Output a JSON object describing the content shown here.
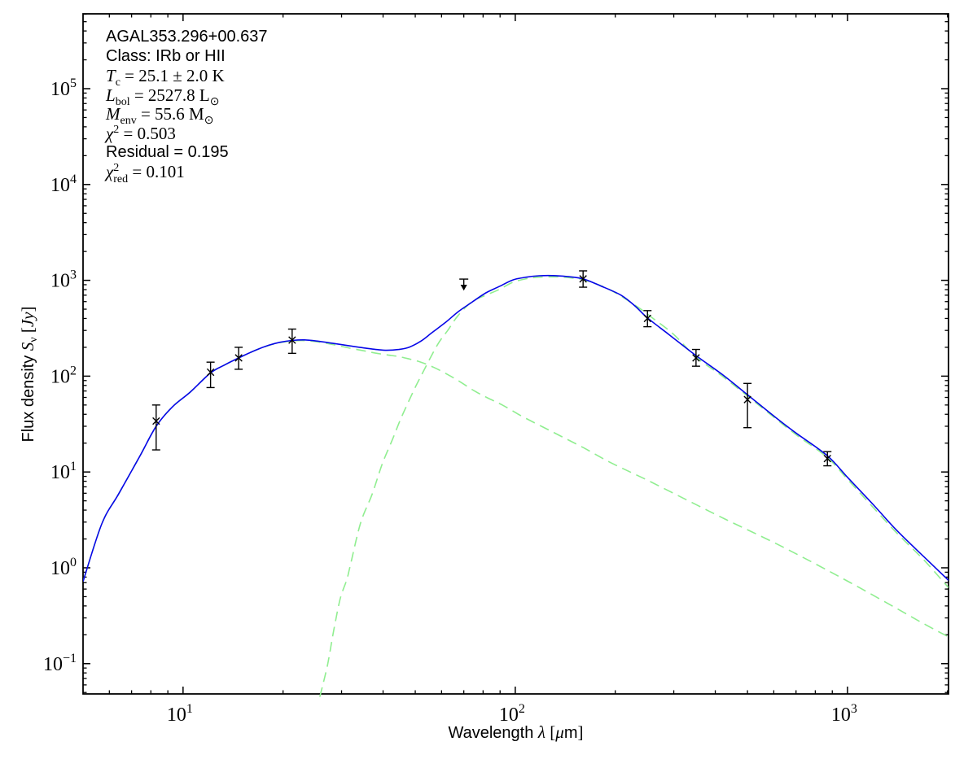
{
  "chart_data": {
    "type": "line",
    "xlabel": "Wavelength λ [μm]",
    "ylabel": "Flux density Sν [Jy]",
    "x_axis": {
      "scale": "log",
      "lim": [
        5,
        2014
      ],
      "major_tick_exponents": [
        1,
        2,
        3
      ]
    },
    "y_axis": {
      "scale": "log",
      "lim": [
        0.0483,
        604000
      ],
      "major_tick_exponents": [
        -1,
        0,
        1,
        2,
        3,
        4,
        5
      ]
    },
    "grid": false,
    "legend": "none",
    "colors": {
      "fit": "#0606e8",
      "components": "#90ee90",
      "data": "#000000"
    },
    "series": [
      {
        "name": "hot component (dashed)",
        "style": "dashed",
        "color_key": "components",
        "points": [
          [
            5,
            0.72
          ],
          [
            5.7,
            2.9
          ],
          [
            6.4,
            5.9
          ],
          [
            7.4,
            14.5
          ],
          [
            8.3,
            30
          ],
          [
            9.3,
            48
          ],
          [
            10.5,
            68
          ],
          [
            12.1,
            108
          ],
          [
            13.4,
            132
          ],
          [
            14.7,
            155
          ],
          [
            16.5,
            186
          ],
          [
            18.1,
            209
          ],
          [
            19.6,
            224
          ],
          [
            21.3,
            233
          ],
          [
            23.2,
            235
          ],
          [
            25.4,
            228
          ],
          [
            28,
            215
          ],
          [
            31.8,
            196
          ],
          [
            35,
            184
          ],
          [
            38,
            174
          ],
          [
            41,
            167
          ],
          [
            44.6,
            160
          ],
          [
            48,
            151
          ],
          [
            52,
            140
          ],
          [
            57,
            123
          ],
          [
            62.6,
            104
          ],
          [
            68,
            88
          ],
          [
            75.4,
            70
          ],
          [
            82,
            60
          ],
          [
            91.4,
            50
          ],
          [
            105,
            38
          ],
          [
            130,
            26
          ],
          [
            160,
            18
          ],
          [
            194,
            12.5
          ],
          [
            250,
            8.2
          ],
          [
            340,
            4.8
          ],
          [
            430,
            3.2
          ],
          [
            598,
            1.85
          ],
          [
            800,
            1.1
          ],
          [
            1052,
            0.66
          ],
          [
            1400,
            0.38
          ],
          [
            1700,
            0.26
          ],
          [
            2014,
            0.19
          ]
        ]
      },
      {
        "name": "cold component (dashed)",
        "style": "dashed",
        "color_key": "components",
        "points": [
          [
            25.8,
            0.045
          ],
          [
            27.2,
            0.096
          ],
          [
            28.4,
            0.22
          ],
          [
            29.7,
            0.47
          ],
          [
            31.1,
            0.75
          ],
          [
            31.8,
            1.02
          ],
          [
            34.2,
            2.9
          ],
          [
            37.1,
            5.9
          ],
          [
            39.8,
            12.2
          ],
          [
            42.7,
            21.9
          ],
          [
            45.4,
            37
          ],
          [
            49.1,
            67
          ],
          [
            52,
            100
          ],
          [
            58.2,
            210
          ],
          [
            62.6,
            300
          ],
          [
            67.3,
            430
          ],
          [
            74.1,
            600
          ],
          [
            81.6,
            700
          ],
          [
            89.3,
            800
          ],
          [
            98,
            950
          ],
          [
            108,
            1040
          ],
          [
            118,
            1078
          ],
          [
            130,
            1088
          ],
          [
            143,
            1072
          ],
          [
            160,
            1012
          ],
          [
            190,
            818
          ],
          [
            229,
            552
          ],
          [
            261,
            396
          ],
          [
            300,
            272
          ],
          [
            350,
            158
          ],
          [
            420,
            100
          ],
          [
            500,
            62
          ],
          [
            608,
            36
          ],
          [
            700,
            24.5
          ],
          [
            869,
            14.2
          ],
          [
            1000,
            8.4
          ],
          [
            1200,
            4.2
          ],
          [
            1400,
            2.35
          ],
          [
            1700,
            1.2
          ],
          [
            2014,
            0.62
          ]
        ]
      },
      {
        "name": "total model fit",
        "style": "solid",
        "color_key": "fit",
        "points": [
          [
            5,
            0.72
          ],
          [
            5.7,
            2.9
          ],
          [
            6.4,
            5.9
          ],
          [
            7.4,
            14.5
          ],
          [
            8.3,
            30
          ],
          [
            9.3,
            48
          ],
          [
            10.5,
            68
          ],
          [
            12.1,
            108
          ],
          [
            13.4,
            132
          ],
          [
            14.7,
            155
          ],
          [
            16.5,
            186
          ],
          [
            18.1,
            210
          ],
          [
            19.6,
            226
          ],
          [
            21.3,
            236
          ],
          [
            23.2,
            239
          ],
          [
            25.4,
            232
          ],
          [
            28,
            221
          ],
          [
            31.8,
            207
          ],
          [
            35,
            197
          ],
          [
            38,
            190
          ],
          [
            41,
            186
          ],
          [
            44.6,
            190
          ],
          [
            48,
            201
          ],
          [
            52,
            232
          ],
          [
            56,
            282
          ],
          [
            62,
            370
          ],
          [
            67.3,
            470
          ],
          [
            74,
            590
          ],
          [
            81.6,
            740
          ],
          [
            90,
            870
          ],
          [
            98.4,
            1010
          ],
          [
            108,
            1080
          ],
          [
            118,
            1115
          ],
          [
            130,
            1120
          ],
          [
            143,
            1095
          ],
          [
            160,
            1035
          ],
          [
            180,
            880
          ],
          [
            208,
            700
          ],
          [
            230,
            535
          ],
          [
            249,
            410
          ],
          [
            290,
            272
          ],
          [
            350,
            164
          ],
          [
            420,
            104
          ],
          [
            500,
            64
          ],
          [
            608,
            37
          ],
          [
            700,
            25.5
          ],
          [
            869,
            14.8
          ],
          [
            1000,
            8.8
          ],
          [
            1200,
            4.5
          ],
          [
            1400,
            2.5
          ],
          [
            1700,
            1.3
          ],
          [
            2014,
            0.74
          ]
        ]
      }
    ],
    "data_points": [
      {
        "lambda": 8.3,
        "flux": 34,
        "flux_lo": 17,
        "flux_hi": 50
      },
      {
        "lambda": 12.1,
        "flux": 110,
        "flux_lo": 76,
        "flux_hi": 140
      },
      {
        "lambda": 14.7,
        "flux": 155,
        "flux_lo": 118,
        "flux_hi": 200
      },
      {
        "lambda": 21.3,
        "flux": 238,
        "flux_lo": 173,
        "flux_hi": 310
      },
      {
        "lambda": 160,
        "flux": 1035,
        "flux_lo": 848,
        "flux_hi": 1255
      },
      {
        "lambda": 250,
        "flux": 400,
        "flux_lo": 328,
        "flux_hi": 483
      },
      {
        "lambda": 350,
        "flux": 155,
        "flux_lo": 127,
        "flux_hi": 190
      },
      {
        "lambda": 500,
        "flux": 57,
        "flux_lo": 29,
        "flux_hi": 84
      },
      {
        "lambda": 870,
        "flux": 13.8,
        "flux_lo": 11.6,
        "flux_hi": 16.3
      }
    ],
    "upper_limit": {
      "lambda": 70,
      "flux_limit": 1030,
      "arrow_end_flux": 900,
      "arrow_tip_flux": 780
    },
    "annotation": {
      "source_name": "AGAL353.296+00.637",
      "class_line": "Class: IRb or HII",
      "tc": {
        "sym": "T",
        "sub": "c",
        "rest": " = 25.1 ± 2.0 K"
      },
      "lbol": {
        "sym": "L",
        "sub": "bol",
        "rest": " = 2527.8 L",
        "unit_sub": "⊙"
      },
      "menv": {
        "sym": "M",
        "sub": "env",
        "rest": " = 55.6 M",
        "unit_sub": "⊙"
      },
      "chi2": {
        "sym": "χ",
        "sup": "2",
        "rest": " = 0.503"
      },
      "residual": "Residual = 0.195",
      "chi2red": {
        "sym": "χ",
        "sup": "2",
        "sub": "red",
        "rest": " = 0.101"
      }
    }
  },
  "labels": {
    "xlabel": {
      "pre": "Wavelength ",
      "sym": "λ",
      "mid": " [",
      "mu": "μ",
      "unit": "m",
      "end": "]"
    },
    "ylabel": {
      "pre": "Flux density ",
      "sym": "S",
      "sub": "ν",
      "mid": " [",
      "unit": "Jy",
      "end": "]"
    }
  }
}
